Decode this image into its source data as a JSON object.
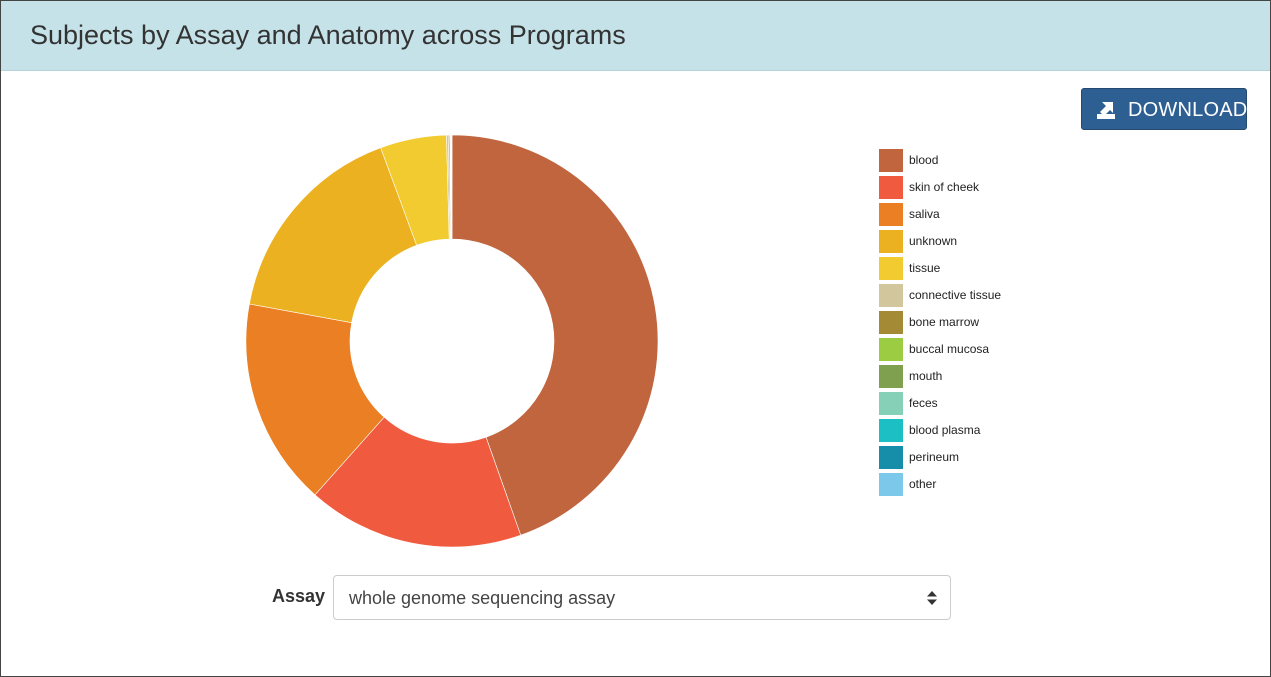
{
  "header": {
    "title": "Subjects by Assay and Anatomy across Programs"
  },
  "toolbar": {
    "download_label": "DOWNLOAD"
  },
  "filter": {
    "label": "Assay",
    "selected": "whole genome sequencing assay"
  },
  "colors": {
    "header_bg": "#c5e2e8",
    "button_bg": "#2e5f93"
  },
  "chart_data": {
    "type": "pie",
    "donut": true,
    "legend_position": "right",
    "categories": [
      "blood",
      "skin of cheek",
      "saliva",
      "unknown",
      "tissue",
      "connective tissue",
      "bone marrow",
      "buccal mucosa",
      "mouth",
      "feces",
      "blood plasma",
      "perineum",
      "other"
    ],
    "colors": [
      "#c0653e",
      "#f05a3e",
      "#ea7f23",
      "#ecb120",
      "#f1cb30",
      "#d2c79c",
      "#a48a35",
      "#9ccc42",
      "#7fa04e",
      "#86d0b8",
      "#1bbfc4",
      "#168ea9",
      "#7bc8ea"
    ],
    "values": [
      44.6,
      17.0,
      16.3,
      16.5,
      5.2,
      0.15,
      0.1,
      0.05,
      0.05,
      0.02,
      0.02,
      0.02,
      0.02
    ]
  }
}
